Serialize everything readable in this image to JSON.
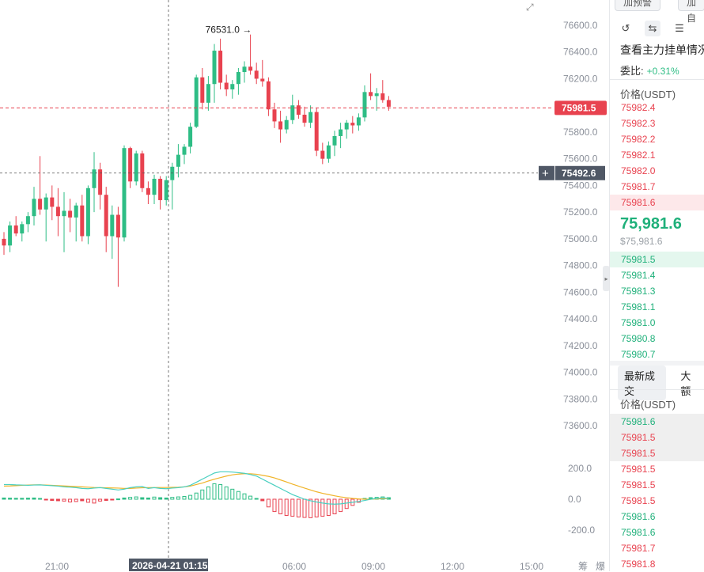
{
  "top_buttons": [
    "加预警",
    "加自"
  ],
  "toolbar_icons": [
    "refresh-icon",
    "split-view-icon",
    "list-view-icon"
  ],
  "order_book": {
    "title": "查看主力挂单情况",
    "ratio_label": "委比:",
    "ratio_value": "+0.31%",
    "price_header": "价格(USDT)",
    "asks": [
      "75982.4",
      "75982.3",
      "75982.2",
      "75982.1",
      "75982.0",
      "75981.7",
      "75981.6"
    ],
    "mid_price": "75,981.6",
    "mid_price_sub": "$75,981.6",
    "bids": [
      "75981.5",
      "75981.4",
      "75981.3",
      "75981.1",
      "75981.0",
      "75980.8",
      "75980.7"
    ]
  },
  "trades": {
    "tabs": [
      "最新成交",
      "大额"
    ],
    "price_header": "价格(USDT)",
    "rows": [
      {
        "price": "75981.6",
        "side": "buy"
      },
      {
        "price": "75981.5",
        "side": "sell"
      },
      {
        "price": "75981.5",
        "side": "sell"
      },
      {
        "price": "75981.5",
        "side": "sell"
      },
      {
        "price": "75981.5",
        "side": "sell"
      },
      {
        "price": "75981.5",
        "side": "sell"
      },
      {
        "price": "75981.6",
        "side": "buy"
      },
      {
        "price": "75981.6",
        "side": "buy"
      },
      {
        "price": "75981.7",
        "side": "sell"
      },
      {
        "price": "75981.8",
        "side": "sell"
      }
    ]
  },
  "price_axis_labels": [
    "76600.0",
    "76400.0",
    "76200.0",
    "76000.0",
    "75800.0",
    "75600.0",
    "75400.0",
    "75200.0",
    "75000.0",
    "74800.0",
    "74600.0",
    "74400.0",
    "74200.0",
    "74000.0",
    "73800.0",
    "73600.0"
  ],
  "price_axis_values": [
    76600,
    76400,
    76200,
    76000,
    75800,
    75600,
    75400,
    75200,
    75000,
    74800,
    74600,
    74400,
    74200,
    74000,
    73800,
    73600
  ],
  "time_axis_labels": [
    "21:00",
    "06:00",
    "09:00",
    "12:00",
    "15:00",
    "筹",
    "爆"
  ],
  "crosshair_time_label": "2026-04-21 01:15",
  "crosshair_price_label": "75492.6",
  "last_price_label": "75981.5",
  "high_marker_label": "76531.0",
  "macd_axis_labels": [
    "200.0",
    "0.0",
    "-200.0"
  ],
  "colors": {
    "up": "#2ebd85",
    "down": "#e8424f",
    "dif": "#49cfc0",
    "dea": "#f0b429",
    "last_price_tag": "#e8424f",
    "crosshair_tag": "#505866"
  },
  "chart_data": {
    "type": "candlestick",
    "price_range": [
      73600,
      76650
    ],
    "candles": [
      {
        "o": 75000,
        "h": 75050,
        "l": 74880,
        "c": 74950
      },
      {
        "o": 74950,
        "h": 75130,
        "l": 74900,
        "c": 75100
      },
      {
        "o": 75100,
        "h": 75170,
        "l": 75020,
        "c": 75040
      },
      {
        "o": 75040,
        "h": 75130,
        "l": 74980,
        "c": 75110
      },
      {
        "o": 75110,
        "h": 75200,
        "l": 75050,
        "c": 75170
      },
      {
        "o": 75170,
        "h": 75390,
        "l": 75100,
        "c": 75300
      },
      {
        "o": 75300,
        "h": 75620,
        "l": 75180,
        "c": 75220
      },
      {
        "o": 75220,
        "h": 75340,
        "l": 74980,
        "c": 75310
      },
      {
        "o": 75310,
        "h": 75400,
        "l": 75140,
        "c": 75240
      },
      {
        "o": 75240,
        "h": 75380,
        "l": 75020,
        "c": 75170
      },
      {
        "o": 75170,
        "h": 75350,
        "l": 74900,
        "c": 75210
      },
      {
        "o": 75210,
        "h": 75300,
        "l": 75050,
        "c": 75160
      },
      {
        "o": 75160,
        "h": 75270,
        "l": 74980,
        "c": 75250
      },
      {
        "o": 75250,
        "h": 75330,
        "l": 74980,
        "c": 75020
      },
      {
        "o": 75020,
        "h": 75400,
        "l": 74960,
        "c": 75380
      },
      {
        "o": 75380,
        "h": 75650,
        "l": 75200,
        "c": 75520
      },
      {
        "o": 75520,
        "h": 75570,
        "l": 75220,
        "c": 75330
      },
      {
        "o": 75330,
        "h": 75390,
        "l": 74900,
        "c": 75020
      },
      {
        "o": 75020,
        "h": 75250,
        "l": 74850,
        "c": 75180
      },
      {
        "o": 75180,
        "h": 75240,
        "l": 74640,
        "c": 75010
      },
      {
        "o": 75010,
        "h": 75700,
        "l": 74980,
        "c": 75680
      },
      {
        "o": 75680,
        "h": 75690,
        "l": 75380,
        "c": 75430
      },
      {
        "o": 75430,
        "h": 75660,
        "l": 75400,
        "c": 75640
      },
      {
        "o": 75640,
        "h": 75660,
        "l": 75350,
        "c": 75380
      },
      {
        "o": 75380,
        "h": 75430,
        "l": 75260,
        "c": 75330
      },
      {
        "o": 75330,
        "h": 75480,
        "l": 75260,
        "c": 75450
      },
      {
        "o": 75450,
        "h": 75470,
        "l": 75220,
        "c": 75290
      },
      {
        "o": 75290,
        "h": 75470,
        "l": 75250,
        "c": 75440
      },
      {
        "o": 75440,
        "h": 75570,
        "l": 75220,
        "c": 75540
      },
      {
        "o": 75540,
        "h": 75710,
        "l": 75460,
        "c": 75630
      },
      {
        "o": 75630,
        "h": 75710,
        "l": 75560,
        "c": 75690
      },
      {
        "o": 75690,
        "h": 75870,
        "l": 75640,
        "c": 75840
      },
      {
        "o": 75840,
        "h": 76230,
        "l": 75830,
        "c": 76210
      },
      {
        "o": 76210,
        "h": 76280,
        "l": 75970,
        "c": 76020
      },
      {
        "o": 76020,
        "h": 76220,
        "l": 75960,
        "c": 76160
      },
      {
        "o": 76160,
        "h": 76460,
        "l": 76020,
        "c": 76410
      },
      {
        "o": 76410,
        "h": 76500,
        "l": 76120,
        "c": 76170
      },
      {
        "o": 76170,
        "h": 76230,
        "l": 76070,
        "c": 76120
      },
      {
        "o": 76120,
        "h": 76190,
        "l": 76050,
        "c": 76160
      },
      {
        "o": 76160,
        "h": 76280,
        "l": 76080,
        "c": 76250
      },
      {
        "o": 76250,
        "h": 76330,
        "l": 76170,
        "c": 76290
      },
      {
        "o": 76290,
        "h": 76531,
        "l": 76230,
        "c": 76260
      },
      {
        "o": 76260,
        "h": 76320,
        "l": 76160,
        "c": 76200
      },
      {
        "o": 76200,
        "h": 76340,
        "l": 76140,
        "c": 76180
      },
      {
        "o": 76180,
        "h": 76210,
        "l": 75920,
        "c": 75970
      },
      {
        "o": 75970,
        "h": 76020,
        "l": 75830,
        "c": 75880
      },
      {
        "o": 75880,
        "h": 75960,
        "l": 75720,
        "c": 75820
      },
      {
        "o": 75820,
        "h": 75920,
        "l": 75790,
        "c": 75890
      },
      {
        "o": 75890,
        "h": 76080,
        "l": 75860,
        "c": 76000
      },
      {
        "o": 76000,
        "h": 76040,
        "l": 75900,
        "c": 75930
      },
      {
        "o": 75930,
        "h": 75990,
        "l": 75840,
        "c": 75870
      },
      {
        "o": 75870,
        "h": 76000,
        "l": 75830,
        "c": 75950
      },
      {
        "o": 75950,
        "h": 75980,
        "l": 75620,
        "c": 75660
      },
      {
        "o": 75660,
        "h": 75720,
        "l": 75560,
        "c": 75600
      },
      {
        "o": 75600,
        "h": 75730,
        "l": 75570,
        "c": 75700
      },
      {
        "o": 75700,
        "h": 75810,
        "l": 75620,
        "c": 75770
      },
      {
        "o": 75770,
        "h": 75870,
        "l": 75680,
        "c": 75820
      },
      {
        "o": 75820,
        "h": 75890,
        "l": 75750,
        "c": 75870
      },
      {
        "o": 75870,
        "h": 75920,
        "l": 75790,
        "c": 75850
      },
      {
        "o": 75850,
        "h": 75940,
        "l": 75810,
        "c": 75910
      },
      {
        "o": 75910,
        "h": 76150,
        "l": 75880,
        "c": 76100
      },
      {
        "o": 76100,
        "h": 76240,
        "l": 76040,
        "c": 76070
      },
      {
        "o": 76070,
        "h": 76130,
        "l": 75960,
        "c": 76090
      },
      {
        "o": 76090,
        "h": 76190,
        "l": 76020,
        "c": 76040
      },
      {
        "o": 76040,
        "h": 76070,
        "l": 75960,
        "c": 75990
      }
    ],
    "macd_range": [
      -220,
      200
    ],
    "macd_hist": [
      8,
      7,
      6,
      6,
      7,
      8,
      5,
      -5,
      -8,
      -10,
      -12,
      -18,
      -15,
      -10,
      -20,
      -25,
      -12,
      -8,
      -5,
      2,
      8,
      12,
      15,
      10,
      8,
      14,
      10,
      8,
      12,
      15,
      18,
      25,
      40,
      60,
      80,
      100,
      95,
      80,
      65,
      50,
      35,
      20,
      5,
      -10,
      -50,
      -80,
      -95,
      -105,
      -110,
      -115,
      -118,
      -120,
      -115,
      -110,
      -105,
      -95,
      -80,
      -60,
      -40,
      -20,
      5,
      10,
      12,
      15,
      10
    ],
    "macd_dif": [
      95,
      95,
      93,
      92,
      90,
      92,
      93,
      90,
      88,
      85,
      80,
      78,
      75,
      70,
      68,
      72,
      75,
      70,
      65,
      60,
      65,
      75,
      80,
      82,
      70,
      75,
      70,
      68,
      72,
      75,
      80,
      90,
      110,
      130,
      150,
      170,
      178,
      178,
      176,
      172,
      168,
      160,
      150,
      130,
      110,
      90,
      70,
      50,
      30,
      15,
      0,
      -10,
      -18,
      -25,
      -30,
      -32,
      -30,
      -25,
      -20,
      -15,
      -8,
      0,
      5,
      8,
      5
    ],
    "macd_dea": [
      85,
      86,
      88,
      90,
      92,
      93,
      93,
      92,
      90,
      88,
      86,
      84,
      82,
      80,
      78,
      76,
      75,
      74,
      73,
      72,
      70,
      70,
      72,
      74,
      75,
      75,
      76,
      76,
      77,
      78,
      80,
      85,
      95,
      105,
      118,
      130,
      140,
      150,
      158,
      163,
      165,
      165,
      162,
      155,
      148,
      138,
      125,
      112,
      98,
      85,
      72,
      60,
      48,
      38,
      30,
      22,
      15,
      10,
      5,
      2,
      0,
      0,
      2,
      3,
      4
    ]
  }
}
